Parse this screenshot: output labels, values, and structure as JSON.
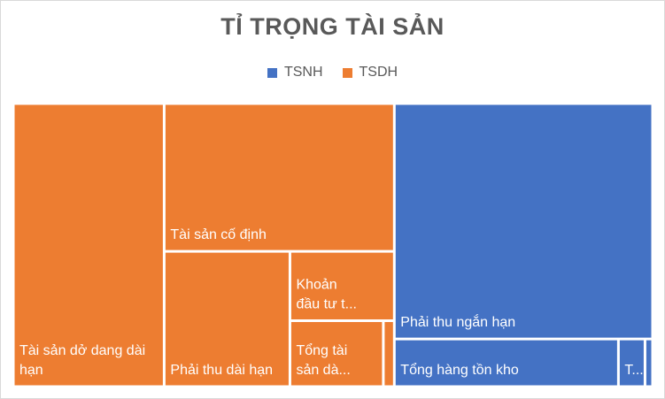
{
  "chart_data": {
    "type": "treemap",
    "title": "TỈ TRỌNG TÀI SẢN",
    "legend": {
      "placement": "top",
      "entries": [
        {
          "name": "TSNH",
          "color": "#4472c4"
        },
        {
          "name": "TSDH",
          "color": "#ed7d31"
        }
      ]
    },
    "groups": [
      {
        "name": "TSDH",
        "color": "#ed7d31",
        "items": [
          {
            "label_lines": [
              "Tài sản dở dang dài",
              "hạn"
            ],
            "value": 23.6
          },
          {
            "label_lines": [
              "Tài sản cố định"
            ],
            "value": 18.8
          },
          {
            "label_lines": [
              "Phải thu dài hạn"
            ],
            "value": 9.4
          },
          {
            "label_lines": [
              "Khoản",
              "đầu tư t..."
            ],
            "value": 4.0
          },
          {
            "label_lines": [
              "Tổng tài",
              "sản dà..."
            ],
            "value": 3.4
          },
          {
            "label_lines": [],
            "value": 0.4
          }
        ]
      },
      {
        "name": "TSNH",
        "color": "#4472c4",
        "items": [
          {
            "label_lines": [
              "Phải thu ngắn hạn"
            ],
            "value": 33.6
          },
          {
            "label_lines": [
              "Tổng hàng tồn kho"
            ],
            "value": 5.9
          },
          {
            "label_lines": [
              "T..."
            ],
            "value": 0.7
          },
          {
            "label_lines": [],
            "value": 0.2
          }
        ]
      }
    ]
  }
}
